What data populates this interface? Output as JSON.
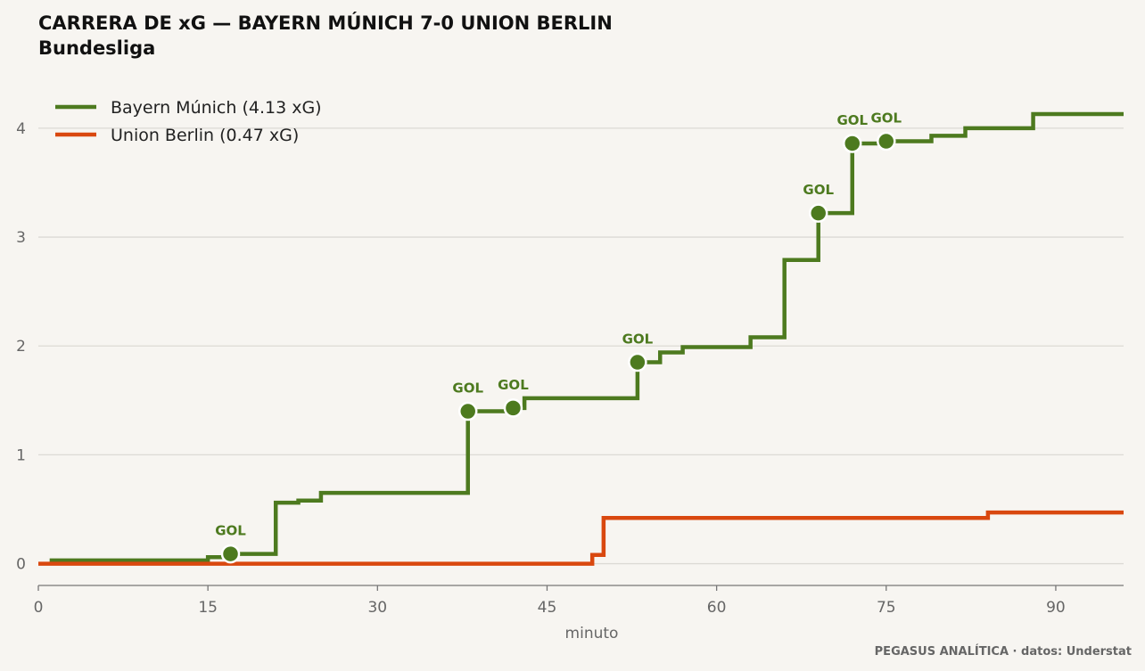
{
  "chart_data": {
    "type": "line",
    "title": "CARRERA DE xG — BAYERN MÚNICH 7-0 UNION BERLIN",
    "subtitle": "Bundesliga",
    "xlabel": "minuto",
    "ylabel": "",
    "xlim": [
      0,
      96
    ],
    "ylim": [
      -0.2,
      4.4
    ],
    "xticks": [
      0,
      15,
      30,
      45,
      60,
      75,
      90
    ],
    "yticks": [
      0,
      1,
      2,
      3,
      4
    ],
    "grid": "horizontal",
    "legend_position": "top-left",
    "goal_label": "GOL",
    "series": [
      {
        "name": "Bayern Múnich (4.13 xG)",
        "color": "#4d7a1f",
        "steps": [
          [
            1,
            0.03
          ],
          [
            15,
            0.06
          ],
          [
            17,
            0.09
          ],
          [
            21,
            0.56
          ],
          [
            23,
            0.58
          ],
          [
            25,
            0.65
          ],
          [
            38,
            1.4
          ],
          [
            42,
            1.43
          ],
          [
            43,
            1.52
          ],
          [
            53,
            1.85
          ],
          [
            55,
            1.94
          ],
          [
            57,
            1.99
          ],
          [
            63,
            2.08
          ],
          [
            66,
            2.79
          ],
          [
            69,
            3.22
          ],
          [
            72,
            3.86
          ],
          [
            75,
            3.88
          ],
          [
            79,
            3.93
          ],
          [
            82,
            4.0
          ],
          [
            88,
            4.13
          ]
        ],
        "end_x": 96,
        "goals": [
          17,
          38,
          42,
          53,
          69,
          72,
          75
        ]
      },
      {
        "name": "Union Berlin (0.47 xG)",
        "color": "#d9480f",
        "steps": [
          [
            0,
            0
          ],
          [
            49,
            0.08
          ],
          [
            50,
            0.42
          ],
          [
            84,
            0.47
          ]
        ],
        "end_x": 96,
        "goals": []
      }
    ]
  },
  "source": "PEGASUS ANALÍTICA · datos: Understat"
}
